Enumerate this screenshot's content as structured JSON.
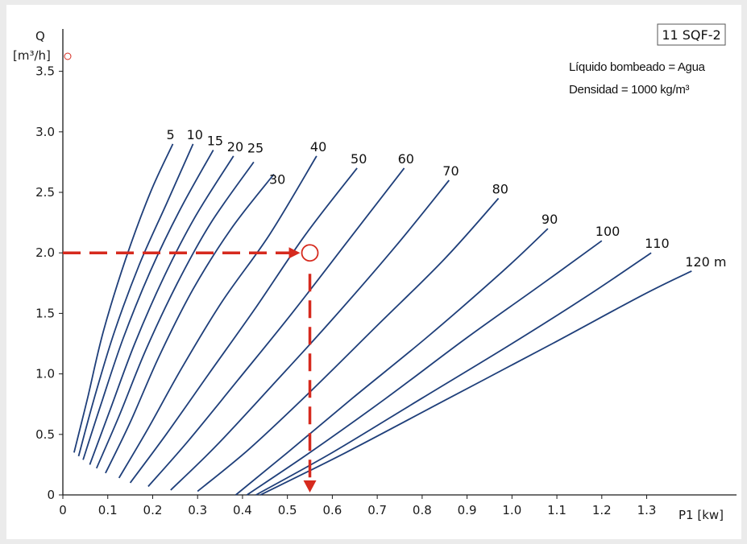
{
  "chart_data": {
    "type": "line",
    "title": "11 SQF-2",
    "annotations": [
      "Líquido bombeado = Agua",
      "Densidad = 1000 kg/m³"
    ],
    "ylabel": "Q",
    "ylabel_unit": "[m³/h]",
    "xlabel": "P1 [kw]",
    "xlim": [
      0,
      1.5
    ],
    "ylim": [
      0,
      3.85
    ],
    "x_ticks": [
      {
        "value": 0,
        "label": "0"
      },
      {
        "value": 0.1,
        "label": "0.1"
      },
      {
        "value": 0.2,
        "label": "0.2"
      },
      {
        "value": 0.3,
        "label": "0.3"
      },
      {
        "value": 0.4,
        "label": "0.4"
      },
      {
        "value": 0.5,
        "label": "0.5"
      },
      {
        "value": 0.6,
        "label": "0.6"
      },
      {
        "value": 0.7,
        "label": "0.7"
      },
      {
        "value": 0.8,
        "label": "0.8"
      },
      {
        "value": 0.9,
        "label": "0.9"
      },
      {
        "value": 1.0,
        "label": "1.0"
      },
      {
        "value": 1.1,
        "label": "1.1"
      },
      {
        "value": 1.2,
        "label": "1.2"
      },
      {
        "value": 1.3,
        "label": "1.3"
      }
    ],
    "y_ticks": [
      {
        "value": 0,
        "label": "0"
      },
      {
        "value": 0.5,
        "label": "0.5"
      },
      {
        "value": 1.0,
        "label": "1.0"
      },
      {
        "value": 1.5,
        "label": "1.5"
      },
      {
        "value": 2.0,
        "label": "2.0"
      },
      {
        "value": 2.5,
        "label": "2.5"
      },
      {
        "value": 3.0,
        "label": "3.0"
      },
      {
        "value": 3.5,
        "label": "3.5"
      }
    ],
    "series_color": "#1f3f7a",
    "series": [
      {
        "label": "5",
        "x": [
          0.025,
          0.055,
          0.09,
          0.14,
          0.195,
          0.245
        ],
        "y": [
          0.35,
          0.8,
          1.35,
          1.95,
          2.5,
          2.9
        ]
      },
      {
        "label": "10",
        "x": [
          0.035,
          0.07,
          0.115,
          0.17,
          0.23,
          0.29
        ],
        "y": [
          0.32,
          0.8,
          1.35,
          1.9,
          2.4,
          2.9
        ]
      },
      {
        "label": "15",
        "x": [
          0.045,
          0.085,
          0.135,
          0.195,
          0.26,
          0.335
        ],
        "y": [
          0.29,
          0.75,
          1.3,
          1.85,
          2.35,
          2.85
        ]
      },
      {
        "label": "20",
        "x": [
          0.06,
          0.105,
          0.16,
          0.225,
          0.295,
          0.38
        ],
        "y": [
          0.25,
          0.7,
          1.25,
          1.8,
          2.3,
          2.8
        ]
      },
      {
        "label": "25",
        "x": [
          0.075,
          0.125,
          0.185,
          0.255,
          0.33,
          0.425
        ],
        "y": [
          0.22,
          0.65,
          1.2,
          1.75,
          2.25,
          2.75
        ]
      },
      {
        "label": "30",
        "x": [
          0.095,
          0.15,
          0.215,
          0.29,
          0.375,
          0.47
        ],
        "y": [
          0.18,
          0.6,
          1.15,
          1.7,
          2.2,
          2.65
        ]
      },
      {
        "label": "40",
        "x": [
          0.125,
          0.19,
          0.265,
          0.355,
          0.46,
          0.565
        ],
        "y": [
          0.14,
          0.55,
          1.05,
          1.6,
          2.15,
          2.8
        ]
      },
      {
        "label": "50",
        "x": [
          0.15,
          0.23,
          0.325,
          0.43,
          0.54,
          0.655
        ],
        "y": [
          0.1,
          0.5,
          1.0,
          1.55,
          2.15,
          2.7
        ]
      },
      {
        "label": "60",
        "x": [
          0.19,
          0.28,
          0.39,
          0.51,
          0.635,
          0.76
        ],
        "y": [
          0.07,
          0.45,
          0.95,
          1.5,
          2.1,
          2.7
        ]
      },
      {
        "label": "70",
        "x": [
          0.24,
          0.34,
          0.465,
          0.6,
          0.74,
          0.86
        ],
        "y": [
          0.04,
          0.4,
          0.9,
          1.45,
          2.05,
          2.6
        ]
      },
      {
        "label": "80",
        "x": [
          0.3,
          0.415,
          0.55,
          0.7,
          0.85,
          0.97
        ],
        "y": [
          0.03,
          0.38,
          0.85,
          1.4,
          1.95,
          2.45
        ]
      },
      {
        "label": "90",
        "x": [
          0.385,
          0.5,
          0.645,
          0.81,
          0.98,
          1.08
        ],
        "y": [
          0.0,
          0.35,
          0.8,
          1.3,
          1.85,
          2.2
        ]
      },
      {
        "label": "100",
        "x": [
          0.41,
          0.55,
          0.72,
          0.9,
          1.07,
          1.2
        ],
        "y": [
          0.0,
          0.35,
          0.8,
          1.3,
          1.75,
          2.1
        ]
      },
      {
        "label": "110",
        "x": [
          0.43,
          0.6,
          0.8,
          1.0,
          1.17,
          1.31
        ],
        "y": [
          0.0,
          0.35,
          0.8,
          1.25,
          1.65,
          2.0
        ]
      },
      {
        "label": "120 m",
        "x": [
          0.44,
          0.63,
          0.86,
          1.09,
          1.29,
          1.4
        ],
        "y": [
          0.0,
          0.35,
          0.8,
          1.25,
          1.65,
          1.85
        ]
      }
    ],
    "operating_point": {
      "x": 0.55,
      "y": 2.0
    },
    "guide_color": "#d62a1e"
  }
}
